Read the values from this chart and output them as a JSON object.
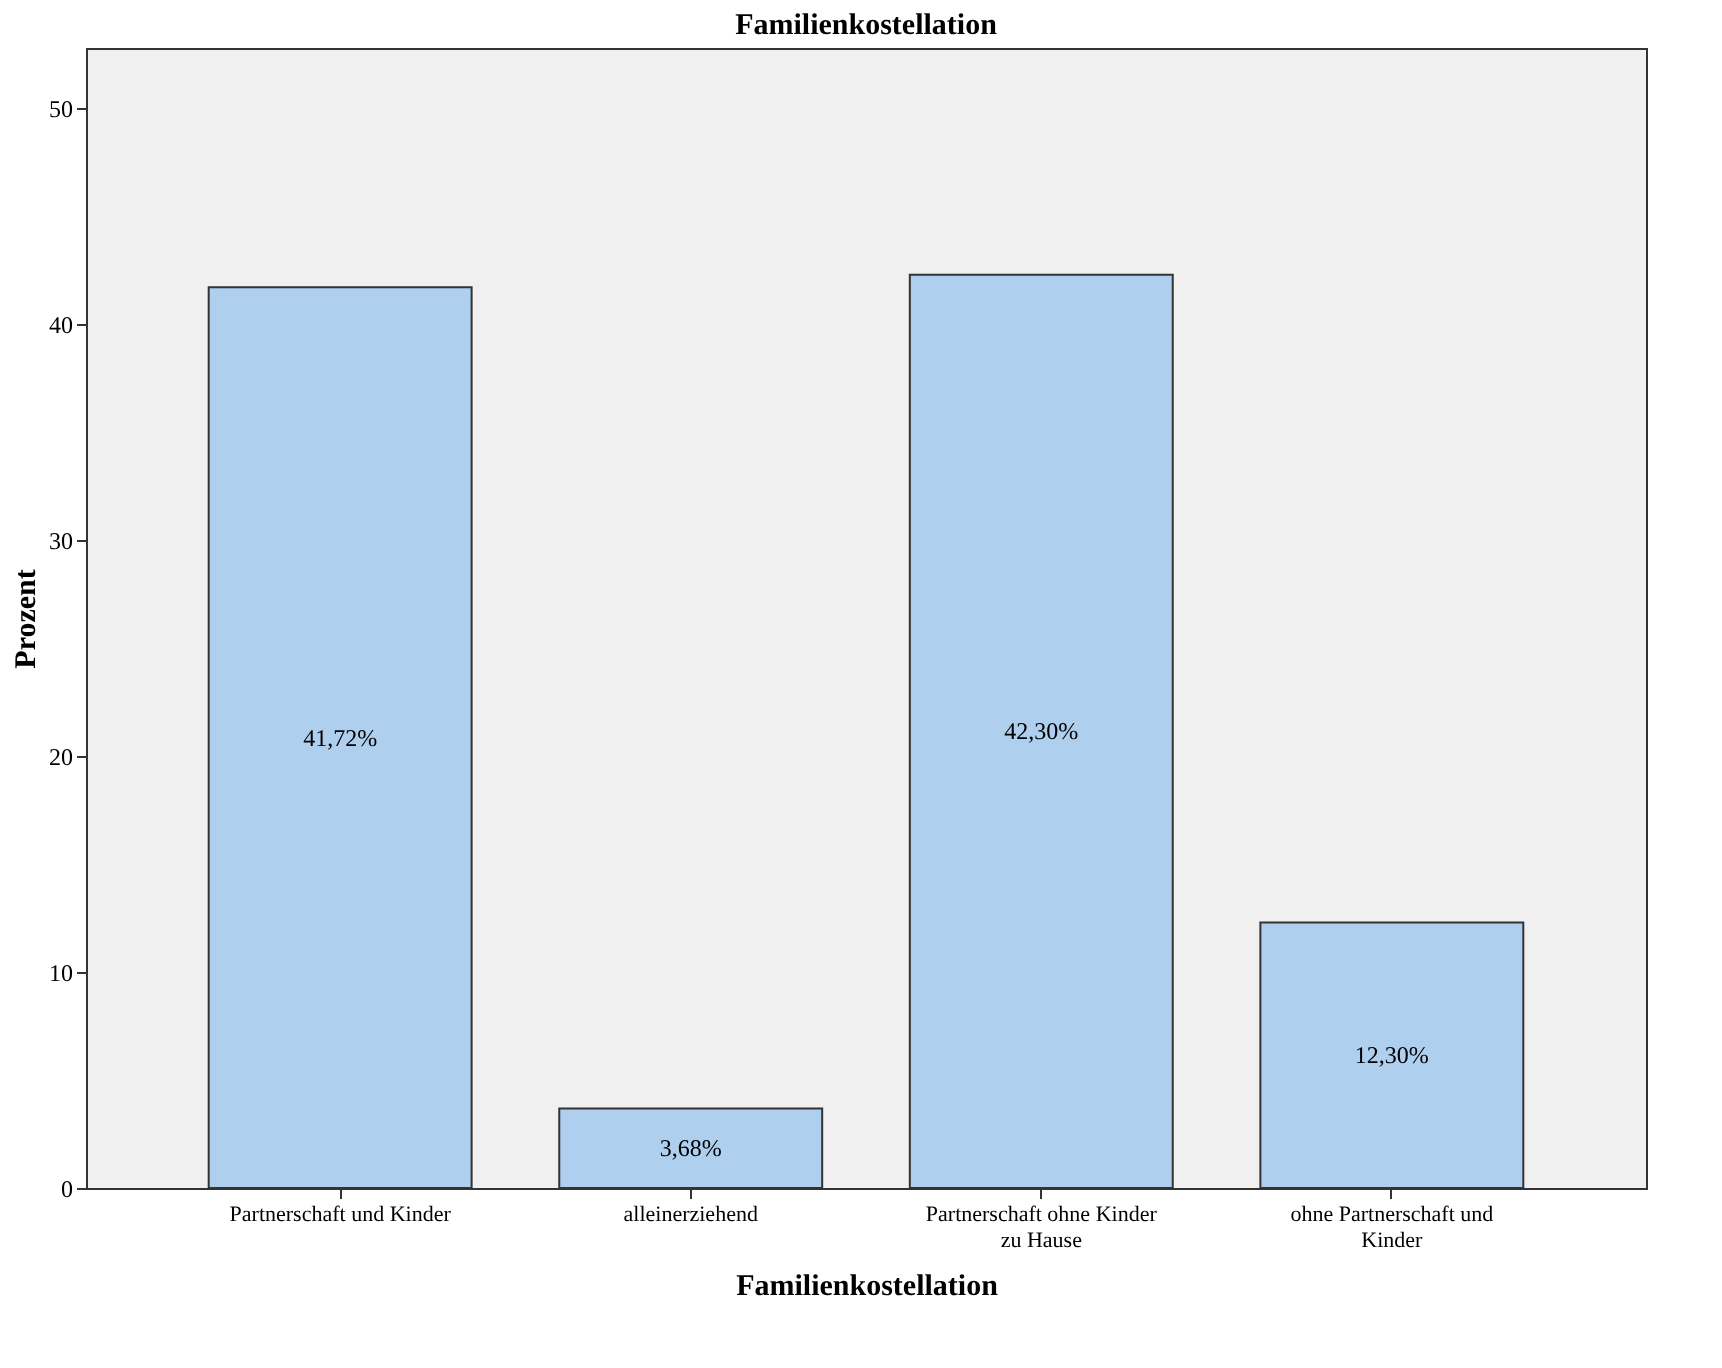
{
  "chart_data": {
    "type": "bar",
    "title": "Familienkostellation",
    "xlabel": "Familienkostellation",
    "ylabel": "Prozent",
    "categories": [
      "Partnerschaft und Kinder",
      "alleinerziehend",
      "Partnerschaft ohne Kinder zu Hause",
      "ohne Partnerschaft und Kinder"
    ],
    "values": [
      41.72,
      3.68,
      42.3,
      12.3
    ],
    "value_labels": [
      "41,72%",
      "3,68%",
      "42,30%",
      "12,30%"
    ],
    "color": "#aecfee",
    "ylim": [
      0,
      52.8
    ],
    "yticks": [
      0,
      10,
      20,
      30,
      40,
      50
    ],
    "grid": false
  }
}
